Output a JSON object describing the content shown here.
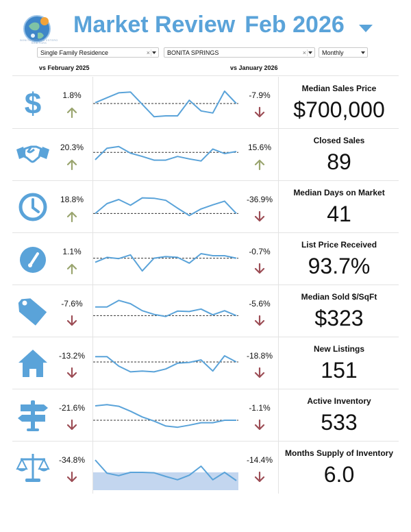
{
  "header": {
    "logo_text": "BONITA SPRINGS ESTERO REALTORS",
    "title": "Market Review",
    "period": "Feb 2026",
    "accent": "#5aa3d9"
  },
  "filters": {
    "property_type": "Single Family Residence",
    "area": "BONITA SPRINGS",
    "frequency": "Monthly"
  },
  "comparisons": {
    "left": "vs February 2025",
    "right": "vs January 2026"
  },
  "colors": {
    "up": "#9aa56f",
    "down": "#9c4d55",
    "line": "#5aa3d9",
    "band": "#c3d6ef"
  },
  "metrics": [
    {
      "icon": "dollar-icon",
      "label": "Median Sales Price",
      "value": "$700,000",
      "yoy": "1.8%",
      "yoy_dir": "up",
      "mom": "-7.9%",
      "mom_dir": "down",
      "spark": [
        52,
        64,
        76,
        78,
        48,
        18,
        20,
        20,
        58,
        32,
        27,
        80,
        50
      ],
      "ref": 50
    },
    {
      "icon": "handshake-icon",
      "label": "Closed Sales",
      "value": "89",
      "yoy": "20.3%",
      "yoy_dir": "up",
      "mom": "15.6%",
      "mom_dir": "up",
      "spark": [
        40,
        68,
        72,
        56,
        48,
        39,
        39,
        48,
        42,
        37,
        66,
        55,
        60
      ],
      "ref": 58
    },
    {
      "icon": "clock-icon",
      "label": "Median Days on Market",
      "value": "41",
      "yoy": "18.8%",
      "yoy_dir": "up",
      "mom": "-36.9%",
      "mom_dir": "down",
      "spark": [
        36,
        60,
        70,
        56,
        74,
        73,
        68,
        49,
        31,
        47,
        57,
        66,
        36
      ],
      "ref": 36
    },
    {
      "icon": "gauge-icon",
      "label": "List Price Received",
      "value": "93.7%",
      "yoy": "1.1%",
      "yoy_dir": "up",
      "mom": "-0.7%",
      "mom_dir": "down",
      "spark": [
        44,
        56,
        53,
        62,
        23,
        54,
        58,
        56,
        42,
        65,
        60,
        60,
        54
      ],
      "ref": 54
    },
    {
      "icon": "price-tag-icon",
      "label": "Median Sold $/SqFt",
      "value": "$323",
      "yoy": "-7.6%",
      "yoy_dir": "down",
      "mom": "-5.6%",
      "mom_dir": "down",
      "spark": [
        62,
        62,
        78,
        70,
        53,
        44,
        39,
        52,
        51,
        57,
        43,
        53,
        41
      ],
      "ref": 41
    },
    {
      "icon": "house-icon",
      "label": "New Listings",
      "value": "151",
      "yoy": "-13.2%",
      "yoy_dir": "down",
      "mom": "-18.8%",
      "mom_dir": "down",
      "spark": [
        68,
        68,
        45,
        31,
        33,
        31,
        38,
        52,
        54,
        60,
        33,
        70,
        55
      ],
      "ref": 55
    },
    {
      "icon": "signpost-icon",
      "label": "Active Inventory",
      "value": "533",
      "yoy": "-21.6%",
      "yoy_dir": "down",
      "mom": "-1.1%",
      "mom_dir": "down",
      "spark": [
        75,
        78,
        74,
        62,
        48,
        38,
        26,
        23,
        28,
        34,
        34,
        40,
        40
      ],
      "ref": 40
    },
    {
      "icon": "scales-icon",
      "label": "Months Supply of Inventory",
      "value": "6.0",
      "yoy": "-34.8%",
      "yoy_dir": "down",
      "mom": "-14.4%",
      "mom_dir": "down",
      "spark": [
        70,
        38,
        32,
        40,
        40,
        39,
        30,
        22,
        33,
        55,
        22,
        40,
        20
      ],
      "ref": 40
    }
  ]
}
